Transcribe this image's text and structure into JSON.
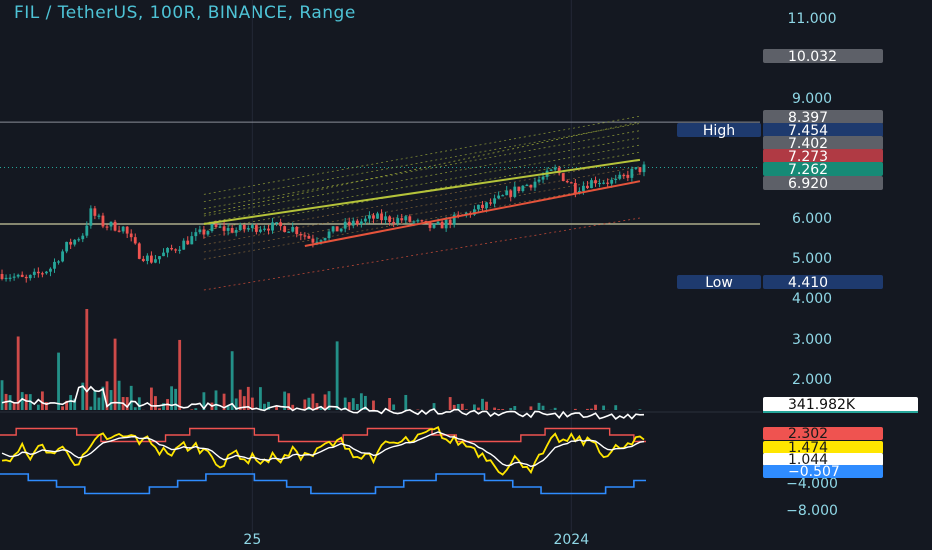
{
  "header": {
    "title": "FIL / TetherUS, 100R, BINANCE, Range"
  },
  "colors": {
    "background": "#141821",
    "axis_text": "#8fd7e6",
    "up": "#26a69a",
    "down": "#ef5350",
    "channel_upper": "#b5c33a",
    "channel_lower": "#e5533b",
    "volume_ma": "#ffffff",
    "osc_main": "#ffe600",
    "osc_signal": "#ffffff",
    "osc_upper_band": "#ef5350",
    "osc_lower_band": "#2f8cff"
  },
  "price_axis": {
    "ticks": [
      "11.000",
      "9.000",
      "6.000",
      "5.000",
      "4.000"
    ],
    "tick_values": [
      11.0,
      9.0,
      6.0,
      5.0,
      4.0
    ]
  },
  "volume_axis": {
    "ticks": [
      "3.000",
      "2.000"
    ],
    "tick_values": [
      3.0,
      2.0
    ]
  },
  "osc_axis": {
    "ticks": [
      "−4.000",
      "−8.000"
    ],
    "tick_values": [
      -4.0,
      -8.0
    ]
  },
  "price_tags": [
    {
      "name": "high-line-tag",
      "text": "10.032",
      "value": 10.032,
      "bg": "#5d6068",
      "fg": "#ffffff"
    },
    {
      "name": "level-tag-8397",
      "text": "8.397",
      "value": 8.397,
      "bg": "#5d6068",
      "fg": "#ffffff"
    },
    {
      "name": "high-value-tag",
      "text": "7.454",
      "value": 7.454,
      "bg": "#1e3a6e",
      "fg": "#ffffff"
    },
    {
      "name": "level-tag-7402",
      "text": "7.402",
      "value": 7.402,
      "bg": "#5d6068",
      "fg": "#ffffff"
    },
    {
      "name": "level-tag-7273",
      "text": "7.273",
      "value": 7.273,
      "bg": "#b03a44",
      "fg": "#ffffff"
    },
    {
      "name": "last-price-tag",
      "text": "7.262",
      "value": 7.262,
      "bg": "#168a76",
      "fg": "#ffffff"
    },
    {
      "name": "level-tag-6920",
      "text": "6.920",
      "value": 6.92,
      "bg": "#5d6068",
      "fg": "#ffffff"
    },
    {
      "name": "low-value-tag",
      "text": "4.410",
      "value": 4.41,
      "bg": "#1e3a6e",
      "fg": "#ffffff"
    }
  ],
  "price_labels": [
    {
      "name": "high-label",
      "text": "High",
      "value": 7.454
    },
    {
      "name": "low-label",
      "text": "Low",
      "value": 4.41
    }
  ],
  "volume_tag": {
    "text": "341.982K",
    "value": 341.982
  },
  "osc_tags": [
    {
      "name": "osc-upper-tag",
      "text": "2.302",
      "value": 2.302,
      "bg": "#ef5350",
      "fg": "#1a1a1a"
    },
    {
      "name": "osc-main-tag",
      "text": "1.474",
      "value": 1.474,
      "bg": "#ffe600",
      "fg": "#1a1a1a"
    },
    {
      "name": "osc-signal-tag",
      "text": "1.044",
      "value": 1.044,
      "bg": "#ffffff",
      "fg": "#1a1a1a"
    },
    {
      "name": "osc-lower-tag",
      "text": "−0.507",
      "value": -0.507,
      "bg": "#2f8cff",
      "fg": "#ffffff"
    }
  ],
  "time_axis": {
    "labels": [
      {
        "text": "25",
        "bar_index": 62
      },
      {
        "text": "2024",
        "bar_index": 141
      }
    ]
  },
  "chart_data": {
    "type": "candlestick",
    "bar_count": 160,
    "horizontal_levels": [
      8.397,
      7.262,
      5.85
    ],
    "channel": {
      "upper_line": {
        "start_bar": 50,
        "start_price": 5.85,
        "end_bar": 158,
        "end_price": 7.454
      },
      "lower_line": {
        "start_bar": 75,
        "start_price": 5.3,
        "end_bar": 158,
        "end_price": 6.92
      }
    },
    "candle_path": [
      [
        0,
        4.6
      ],
      [
        6,
        4.45
      ],
      [
        12,
        4.75
      ],
      [
        16,
        5.3
      ],
      [
        20,
        5.6
      ],
      [
        22,
        6.15
      ],
      [
        25,
        5.85
      ],
      [
        30,
        5.75
      ],
      [
        34,
        5.1
      ],
      [
        37,
        4.95
      ],
      [
        42,
        5.2
      ],
      [
        47,
        5.5
      ],
      [
        52,
        5.75
      ],
      [
        58,
        5.7
      ],
      [
        65,
        5.8
      ],
      [
        72,
        5.75
      ],
      [
        77,
        5.45
      ],
      [
        85,
        5.8
      ],
      [
        92,
        6.0
      ],
      [
        100,
        5.95
      ],
      [
        107,
        5.75
      ],
      [
        115,
        6.1
      ],
      [
        122,
        6.4
      ],
      [
        128,
        6.75
      ],
      [
        134,
        7.0
      ],
      [
        137,
        7.2
      ],
      [
        142,
        6.75
      ],
      [
        147,
        6.95
      ],
      [
        152,
        6.9
      ],
      [
        156,
        7.15
      ],
      [
        159,
        7.26
      ]
    ],
    "volume_series": {
      "name": "Volume",
      "ma_level_start": 1.45,
      "ma_level_end": 1.05,
      "spike_bars": [
        4,
        14,
        21,
        28,
        44,
        57,
        83
      ]
    },
    "oscillator": {
      "range": [
        -2.5,
        3.0
      ],
      "signal_mean": 0.9
    }
  }
}
